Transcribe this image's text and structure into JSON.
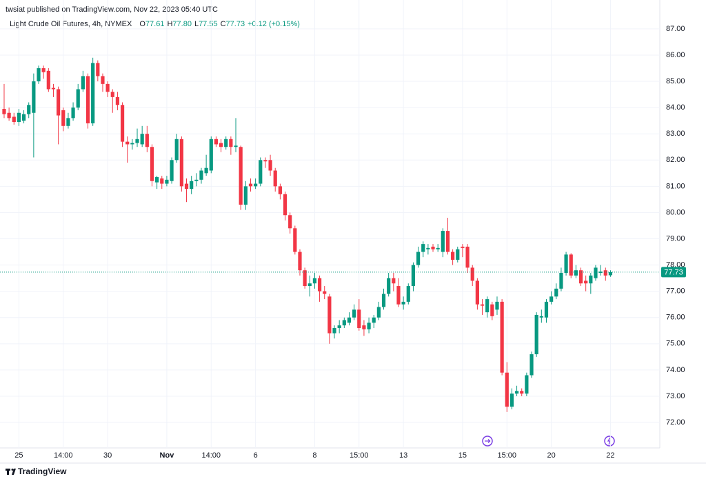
{
  "header": {
    "publisher": "twsiat published on TradingView.com, Nov 22, 2023 05:40 UTC",
    "symbol": "Light Crude Oil Futures, 4h, NYMEX",
    "legend": [
      {
        "key": "O",
        "value": "77.61"
      },
      {
        "key": "H",
        "value": "77.80"
      },
      {
        "key": "L",
        "value": "77.55"
      },
      {
        "key": "C",
        "value": "77.73"
      }
    ],
    "change": "+0.12 (+0.15%)"
  },
  "footer": {
    "brand": "TradingView"
  },
  "chart_data": {
    "type": "candlestick",
    "up_color": "#089981",
    "down_color": "#f23645",
    "grid": true,
    "ylim": [
      71.03,
      88.1
    ],
    "yticks": [
      {
        "value": 72,
        "label": "72.00"
      },
      {
        "value": 73,
        "label": "73.00"
      },
      {
        "value": 74,
        "label": "74.00"
      },
      {
        "value": 75,
        "label": "75.00"
      },
      {
        "value": 76,
        "label": "76.00"
      },
      {
        "value": 77,
        "label": "77.00"
      },
      {
        "value": 78,
        "label": "78.00"
      },
      {
        "value": 79,
        "label": "79.00"
      },
      {
        "value": 80,
        "label": "80.00"
      },
      {
        "value": 81,
        "label": "81.00"
      },
      {
        "value": 82,
        "label": "82.00"
      },
      {
        "value": 83,
        "label": "83.00"
      },
      {
        "value": 84,
        "label": "84.00"
      },
      {
        "value": 85,
        "label": "85.00"
      },
      {
        "value": 86,
        "label": "86.00"
      },
      {
        "value": 87,
        "label": "87.00"
      }
    ],
    "categories": [
      null,
      null,
      null,
      "25",
      null,
      null,
      null,
      null,
      null,
      null,
      null,
      null,
      "14:00",
      null,
      null,
      null,
      null,
      null,
      null,
      null,
      null,
      "30",
      null,
      null,
      null,
      null,
      null,
      null,
      null,
      null,
      null,
      null,
      null,
      "Nov",
      null,
      null,
      null,
      null,
      null,
      null,
      null,
      null,
      "14:00",
      null,
      null,
      null,
      null,
      null,
      null,
      null,
      null,
      "6",
      null,
      null,
      null,
      null,
      null,
      null,
      null,
      null,
      null,
      null,
      null,
      "8",
      null,
      null,
      null,
      null,
      null,
      null,
      null,
      null,
      "15:00",
      null,
      null,
      null,
      null,
      null,
      null,
      null,
      null,
      "13",
      null,
      null,
      null,
      null,
      null,
      null,
      null,
      null,
      null,
      null,
      null,
      "15",
      null,
      null,
      null,
      null,
      null,
      null,
      null,
      null,
      "15:00",
      null,
      null,
      null,
      null,
      null,
      null,
      null,
      null,
      "20",
      null,
      null,
      null,
      null,
      null,
      null,
      null,
      null,
      null,
      null,
      null,
      "22"
    ],
    "open": [
      83.95,
      83.8,
      83.65,
      83.45,
      83.5,
      83.75,
      83.8,
      85.0,
      85.5,
      85.4,
      84.75,
      84.7,
      83.9,
      83.3,
      83.6,
      84.0,
      84.7,
      85.2,
      83.4,
      85.7,
      85.2,
      84.9,
      84.6,
      84.4,
      84.1,
      82.7,
      82.6,
      82.65,
      82.6,
      83.0,
      82.5,
      81.15,
      81.3,
      81.1,
      81.2,
      82.0,
      82.8,
      81.1,
      80.9,
      81.2,
      81.25,
      81.5,
      81.6,
      82.8,
      82.65,
      82.5,
      82.8,
      82.5,
      82.5,
      80.3,
      81.1,
      81.0,
      81.1,
      82.0,
      82.0,
      81.6,
      81.0,
      80.7,
      79.9,
      79.4,
      78.5,
      77.8,
      77.2,
      77.3,
      77.5,
      77.0,
      76.8,
      75.4,
      75.6,
      75.7,
      75.8,
      76.0,
      76.3,
      75.7,
      75.55,
      75.8,
      76.0,
      76.4,
      76.9,
      77.5,
      77.2,
      76.5,
      76.6,
      77.2,
      78.0,
      78.5,
      78.6,
      78.7,
      78.6,
      78.5,
      79.3,
      78.5,
      78.2,
      78.7,
      78.7,
      77.9,
      77.4,
      76.5,
      76.2,
      76.5,
      76.3,
      76.6,
      73.9,
      72.6,
      73.1,
      73.2,
      73.1,
      73.8,
      74.6,
      76.0,
      76.0,
      76.6,
      76.8,
      77.1,
      77.7,
      78.4,
      77.6,
      77.8,
      77.4,
      77.3,
      77.5,
      77.7,
      77.8,
      77.61
    ],
    "high": [
      84.9,
      84.0,
      83.8,
      83.95,
      83.9,
      84.2,
      85.3,
      85.6,
      85.6,
      85.5,
      84.9,
      84.8,
      84.0,
      83.8,
      84.2,
      84.9,
      85.4,
      85.3,
      85.9,
      85.8,
      85.3,
      85.0,
      84.7,
      84.6,
      84.2,
      82.9,
      82.8,
      83.2,
      83.3,
      83.3,
      82.6,
      81.4,
      81.4,
      81.4,
      82.1,
      83.0,
      82.9,
      81.3,
      81.4,
      81.5,
      81.7,
      82.2,
      82.9,
      82.9,
      82.8,
      82.9,
      82.9,
      83.6,
      82.55,
      81.2,
      81.3,
      81.3,
      82.1,
      82.1,
      82.2,
      81.7,
      81.1,
      80.8,
      80.0,
      79.5,
      78.6,
      77.9,
      77.6,
      77.7,
      77.6,
      77.2,
      76.9,
      75.7,
      75.9,
      76.0,
      76.2,
      76.5,
      76.7,
      75.9,
      76.0,
      76.1,
      76.6,
      77.1,
      77.7,
      77.7,
      77.5,
      76.8,
      77.3,
      78.1,
      78.7,
      78.9,
      78.8,
      78.8,
      78.8,
      79.4,
      79.8,
      78.6,
      78.7,
      78.8,
      78.8,
      78.0,
      77.5,
      76.7,
      76.8,
      76.6,
      76.8,
      76.7,
      74.3,
      73.3,
      73.4,
      73.3,
      73.9,
      74.7,
      76.2,
      76.3,
      76.7,
      77.0,
      77.3,
      77.9,
      78.5,
      78.45,
      78.0,
      77.9,
      77.6,
      77.7,
      78.0,
      78.0,
      77.9,
      77.8
    ],
    "low": [
      83.6,
      83.5,
      83.35,
      83.3,
      83.4,
      83.6,
      82.1,
      84.9,
      85.1,
      84.6,
      84.4,
      82.6,
      83.1,
      83.2,
      83.5,
      83.9,
      84.6,
      83.2,
      83.3,
      85.0,
      84.6,
      84.4,
      83.8,
      83.9,
      82.5,
      81.9,
      82.4,
      82.5,
      82.5,
      82.3,
      81.0,
      80.9,
      80.9,
      81.0,
      81.1,
      81.9,
      80.8,
      80.4,
      80.7,
      81.0,
      81.1,
      81.4,
      81.5,
      82.5,
      82.3,
      82.4,
      82.2,
      82.3,
      80.1,
      80.1,
      80.8,
      80.9,
      81.0,
      81.7,
      81.4,
      80.8,
      80.5,
      79.7,
      79.2,
      78.4,
      77.6,
      77.1,
      76.8,
      77.1,
      76.6,
      76.7,
      75.0,
      75.2,
      75.4,
      75.6,
      75.7,
      75.9,
      75.5,
      75.3,
      75.4,
      75.6,
      75.9,
      76.3,
      76.8,
      77.0,
      76.4,
      76.3,
      76.5,
      77.0,
      77.9,
      78.3,
      78.4,
      78.5,
      78.5,
      78.3,
      78.4,
      78.0,
      78.1,
      78.3,
      77.7,
      77.2,
      76.3,
      76.1,
      76.0,
      75.9,
      76.1,
      73.8,
      72.4,
      72.5,
      73.0,
      73.0,
      73.0,
      73.7,
      74.5,
      75.8,
      75.8,
      76.5,
      76.7,
      77.0,
      77.6,
      77.5,
      77.5,
      77.2,
      77.0,
      76.9,
      77.4,
      77.6,
      77.4,
      77.55
    ],
    "close": [
      83.75,
      83.6,
      83.45,
      83.8,
      83.75,
      84.1,
      85.0,
      85.5,
      85.35,
      84.7,
      84.7,
      83.7,
      83.3,
      83.6,
      84.0,
      84.7,
      85.2,
      83.4,
      85.7,
      85.2,
      84.9,
      84.6,
      84.4,
      84.1,
      82.7,
      82.6,
      82.65,
      82.8,
      83.0,
      82.5,
      81.2,
      81.35,
      81.1,
      81.25,
      82.0,
      82.8,
      81.0,
      80.9,
      81.2,
      81.25,
      81.6,
      81.7,
      82.8,
      82.6,
      82.5,
      82.8,
      82.5,
      82.55,
      80.3,
      81.0,
      81.0,
      81.1,
      82.0,
      81.95,
      81.6,
      81.0,
      80.7,
      79.9,
      79.4,
      78.5,
      77.8,
      77.2,
      77.3,
      77.5,
      77.0,
      76.9,
      75.4,
      75.6,
      75.7,
      75.9,
      76.0,
      76.3,
      75.6,
      75.55,
      75.8,
      76.0,
      76.4,
      76.9,
      77.5,
      77.3,
      76.5,
      76.6,
      77.2,
      78.0,
      78.5,
      78.8,
      78.65,
      78.6,
      78.65,
      79.3,
      78.5,
      78.2,
      78.6,
      78.65,
      77.9,
      77.4,
      76.5,
      76.45,
      76.7,
      76.05,
      76.6,
      73.9,
      72.6,
      73.1,
      73.2,
      73.1,
      73.8,
      74.6,
      76.1,
      76.05,
      76.6,
      76.8,
      77.1,
      77.7,
      78.4,
      77.6,
      77.8,
      77.3,
      77.3,
      77.6,
      77.9,
      77.75,
      77.6,
      77.73
    ]
  }
}
